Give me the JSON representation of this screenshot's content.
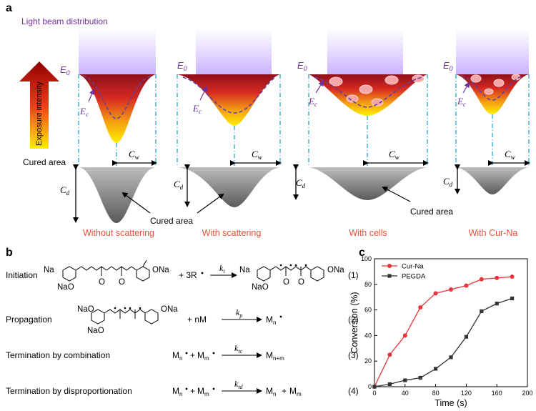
{
  "panel_a": {
    "label": "a",
    "light_beam": "Light beam distribution",
    "arrow_label": "Exposure intensity",
    "e0": "E",
    "e0_sub": "0",
    "ec": "E",
    "ec_sub": "c",
    "cw": "C",
    "cw_sub": "w",
    "cd": "C",
    "cd_sub": "d",
    "cured_area_side": "Cured area",
    "cured_area_center": "Cured area",
    "captions": [
      "Without scattering",
      "With scattering",
      "With cells",
      "With Cur-Na"
    ],
    "colors": {
      "caption": "#e8503a",
      "purple": "#7030a0",
      "guide": "#29a3c7"
    }
  },
  "panel_b": {
    "label": "b",
    "rows": [
      {
        "name": "Initiation",
        "num": "(1)",
        "reagent": "+ 3R",
        "k": "k",
        "k_sub": "i"
      },
      {
        "name": "Propagation",
        "num": "(2)",
        "reagent": "+  nM",
        "k": "k",
        "k_sub": "p",
        "product": "M",
        "product_sub": "n"
      },
      {
        "name": "Termination by combination",
        "num": "(3)",
        "k": "k",
        "k_sub": "tc",
        "lhs1": "M",
        "lhs1_sub": "n",
        "lhs2": "M",
        "lhs2_sub": "m",
        "product": "M",
        "product_sub": "n+m"
      },
      {
        "name": "Termination by disproportionation",
        "num": "(4)",
        "k": "k",
        "k_sub": "td",
        "lhs1": "M",
        "lhs1_sub": "n",
        "lhs2": "M",
        "lhs2_sub": "m",
        "product": "M",
        "product_sub": "n",
        "product2": "M",
        "product2_sub": "m"
      }
    ],
    "atoms": {
      "na": "Na",
      "ona": "ONa",
      "nao": "NaO",
      "o": "O"
    }
  },
  "panel_c": {
    "label": "c",
    "chart_data": {
      "type": "line",
      "title": "",
      "xlabel": "Time (s)",
      "ylabel": "Conversion (%)",
      "xlim": [
        0,
        200
      ],
      "ylim": [
        0,
        100
      ],
      "xticks": [
        0,
        40,
        80,
        120,
        160,
        200
      ],
      "yticks": [
        0,
        20,
        40,
        60,
        80,
        100
      ],
      "legend": "top-left",
      "series": [
        {
          "name": "Cur-Na",
          "color": "#e8343a",
          "marker": "circle",
          "x": [
            0,
            20,
            40,
            60,
            80,
            100,
            120,
            140,
            160,
            180
          ],
          "y": [
            0,
            25,
            40,
            62,
            73,
            76,
            79,
            84,
            85,
            86
          ]
        },
        {
          "name": "PEGDA",
          "color": "#333333",
          "marker": "square",
          "x": [
            0,
            20,
            40,
            60,
            80,
            100,
            120,
            140,
            160,
            180
          ],
          "y": [
            0,
            2,
            5,
            7,
            14,
            23,
            39,
            59,
            65,
            69
          ]
        }
      ]
    }
  }
}
